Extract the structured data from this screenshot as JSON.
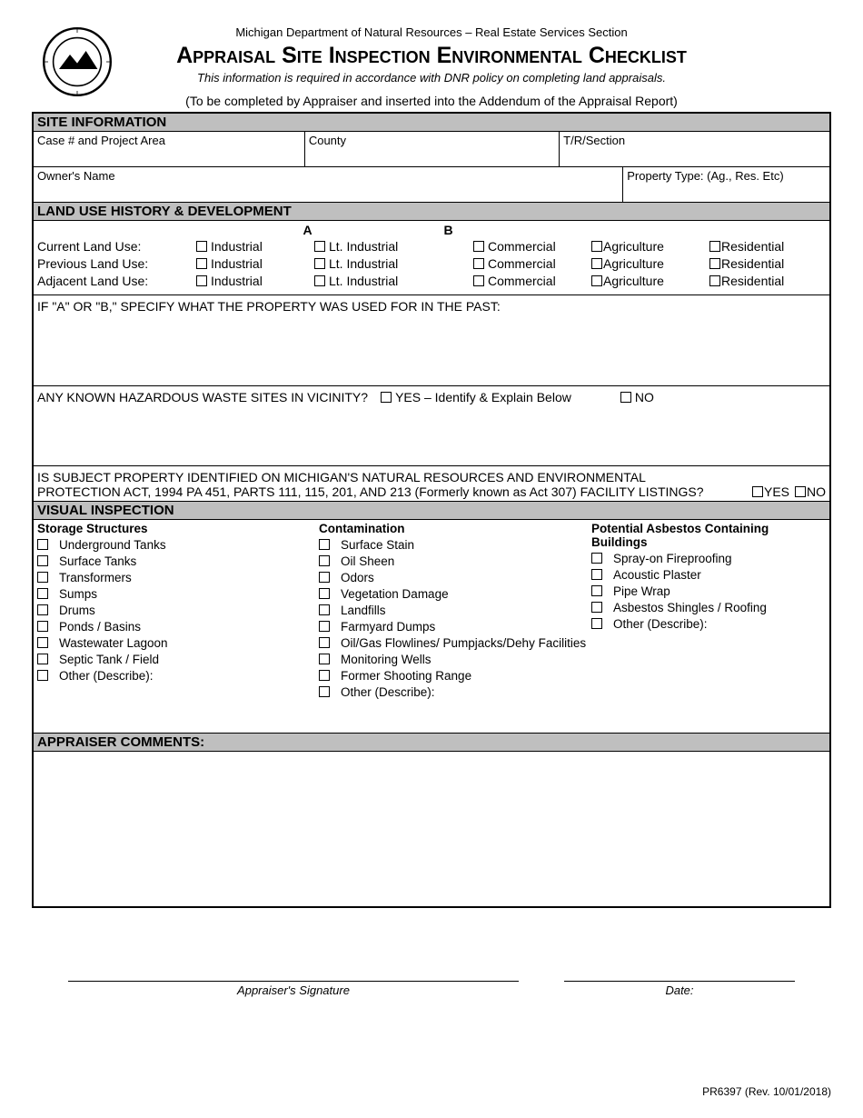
{
  "header": {
    "department": "Michigan Department of Natural Resources – Real Estate Services Section",
    "title": "Appraisal Site Inspection Environmental Checklist",
    "subtitle": "This information is required in accordance with DNR policy on completing land appraisals.",
    "instruction": "(To be completed by Appraiser and inserted into the Addendum of the Appraisal Report)"
  },
  "sections": {
    "site_info": {
      "heading": "SITE INFORMATION",
      "case_label": "Case # and Project Area",
      "county_label": "County",
      "trsection_label": "T/R/Section",
      "owner_label": "Owner's Name",
      "property_type_label": "Property Type: (Ag., Res. Etc)"
    },
    "land_use": {
      "heading": "LAND USE HISTORY & DEVELOPMENT",
      "col_a": "A",
      "col_b": "B",
      "rows": [
        {
          "label": "Current Land Use:"
        },
        {
          "label": "Previous Land Use:"
        },
        {
          "label": "Adjacent Land Use:"
        }
      ],
      "options": {
        "industrial": "Industrial",
        "lt_industrial": "Lt. Industrial",
        "commercial": "Commercial",
        "agriculture": "Agriculture",
        "residential": "Residential"
      },
      "specify_prompt": "IF \"A\" OR \"B,\" SPECIFY WHAT THE PROPERTY WAS USED FOR IN THE PAST:",
      "hazard_prompt": "ANY KNOWN HAZARDOUS WASTE SITES IN VICINITY?",
      "hazard_yes": "YES – Identify & Explain Below",
      "hazard_no": "NO",
      "listings_line1": "IS SUBJECT PROPERTY IDENTIFIED ON MICHIGAN'S NATURAL RESOURCES AND ENVIRONMENTAL",
      "listings_line2": "PROTECTION ACT, 1994 PA 451, PARTS 111, 115, 201, AND 213 (Formerly known as Act 307) FACILITY LISTINGS?",
      "listings_yes": "YES",
      "listings_no": "NO"
    },
    "visual": {
      "heading": "VISUAL INSPECTION",
      "col1_head": "Storage Structures",
      "col1_items": [
        "Underground Tanks",
        "Surface Tanks",
        "Transformers",
        "Sumps",
        "Drums",
        "Ponds / Basins",
        "Wastewater Lagoon",
        "Septic Tank / Field",
        "Other (Describe):"
      ],
      "col2_head": "Contamination",
      "col2_items": [
        "Surface Stain",
        "Oil Sheen",
        "Odors",
        "Vegetation Damage",
        "Landfills",
        "Farmyard Dumps",
        "Oil/Gas Flowlines/ Pumpjacks/Dehy Facilities",
        "Monitoring Wells",
        "Former Shooting Range",
        "Other (Describe):"
      ],
      "col3_head": "Potential Asbestos Containing Buildings",
      "col3_items": [
        "Spray-on Fireproofing",
        "Acoustic Plaster",
        "Pipe Wrap",
        "Asbestos Shingles / Roofing",
        "Other (Describe):"
      ]
    },
    "comments": {
      "heading": "APPRAISER COMMENTS:"
    }
  },
  "signature": {
    "appraiser": "Appraiser's Signature",
    "date": "Date:"
  },
  "form_id": "PR6397 (Rev. 10/01/2018)"
}
